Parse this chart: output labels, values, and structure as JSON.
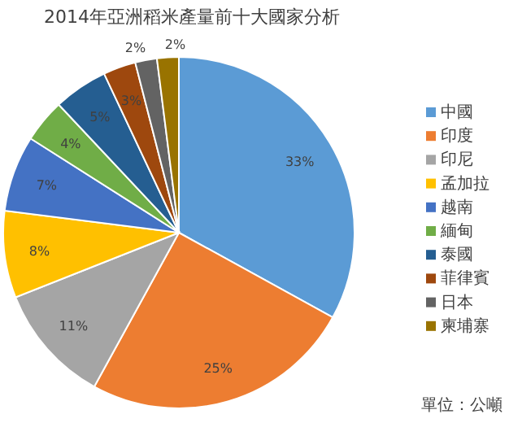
{
  "chart_data": {
    "type": "pie",
    "title": "2014年亞洲稻米產量前十大國家分析",
    "categories": [
      "中國",
      "印度",
      "印尼",
      "孟加拉",
      "越南",
      "緬甸",
      "泰國",
      "菲律賓",
      "日本",
      "柬埔寨"
    ],
    "values": [
      33,
      25,
      11,
      8,
      7,
      4,
      5,
      3,
      2,
      2
    ],
    "colors": [
      "#5b9bd5",
      "#ed7d31",
      "#a5a5a5",
      "#ffc000",
      "#4472c4",
      "#70ad47",
      "#255e91",
      "#9e480e",
      "#636363",
      "#997300"
    ],
    "value_labels": [
      "33%",
      "25%",
      "11%",
      "8%",
      "7%",
      "4%",
      "5%",
      "3%",
      "2%",
      "2%"
    ],
    "legend": "right",
    "annotations": [
      "單位：公噸"
    ]
  }
}
